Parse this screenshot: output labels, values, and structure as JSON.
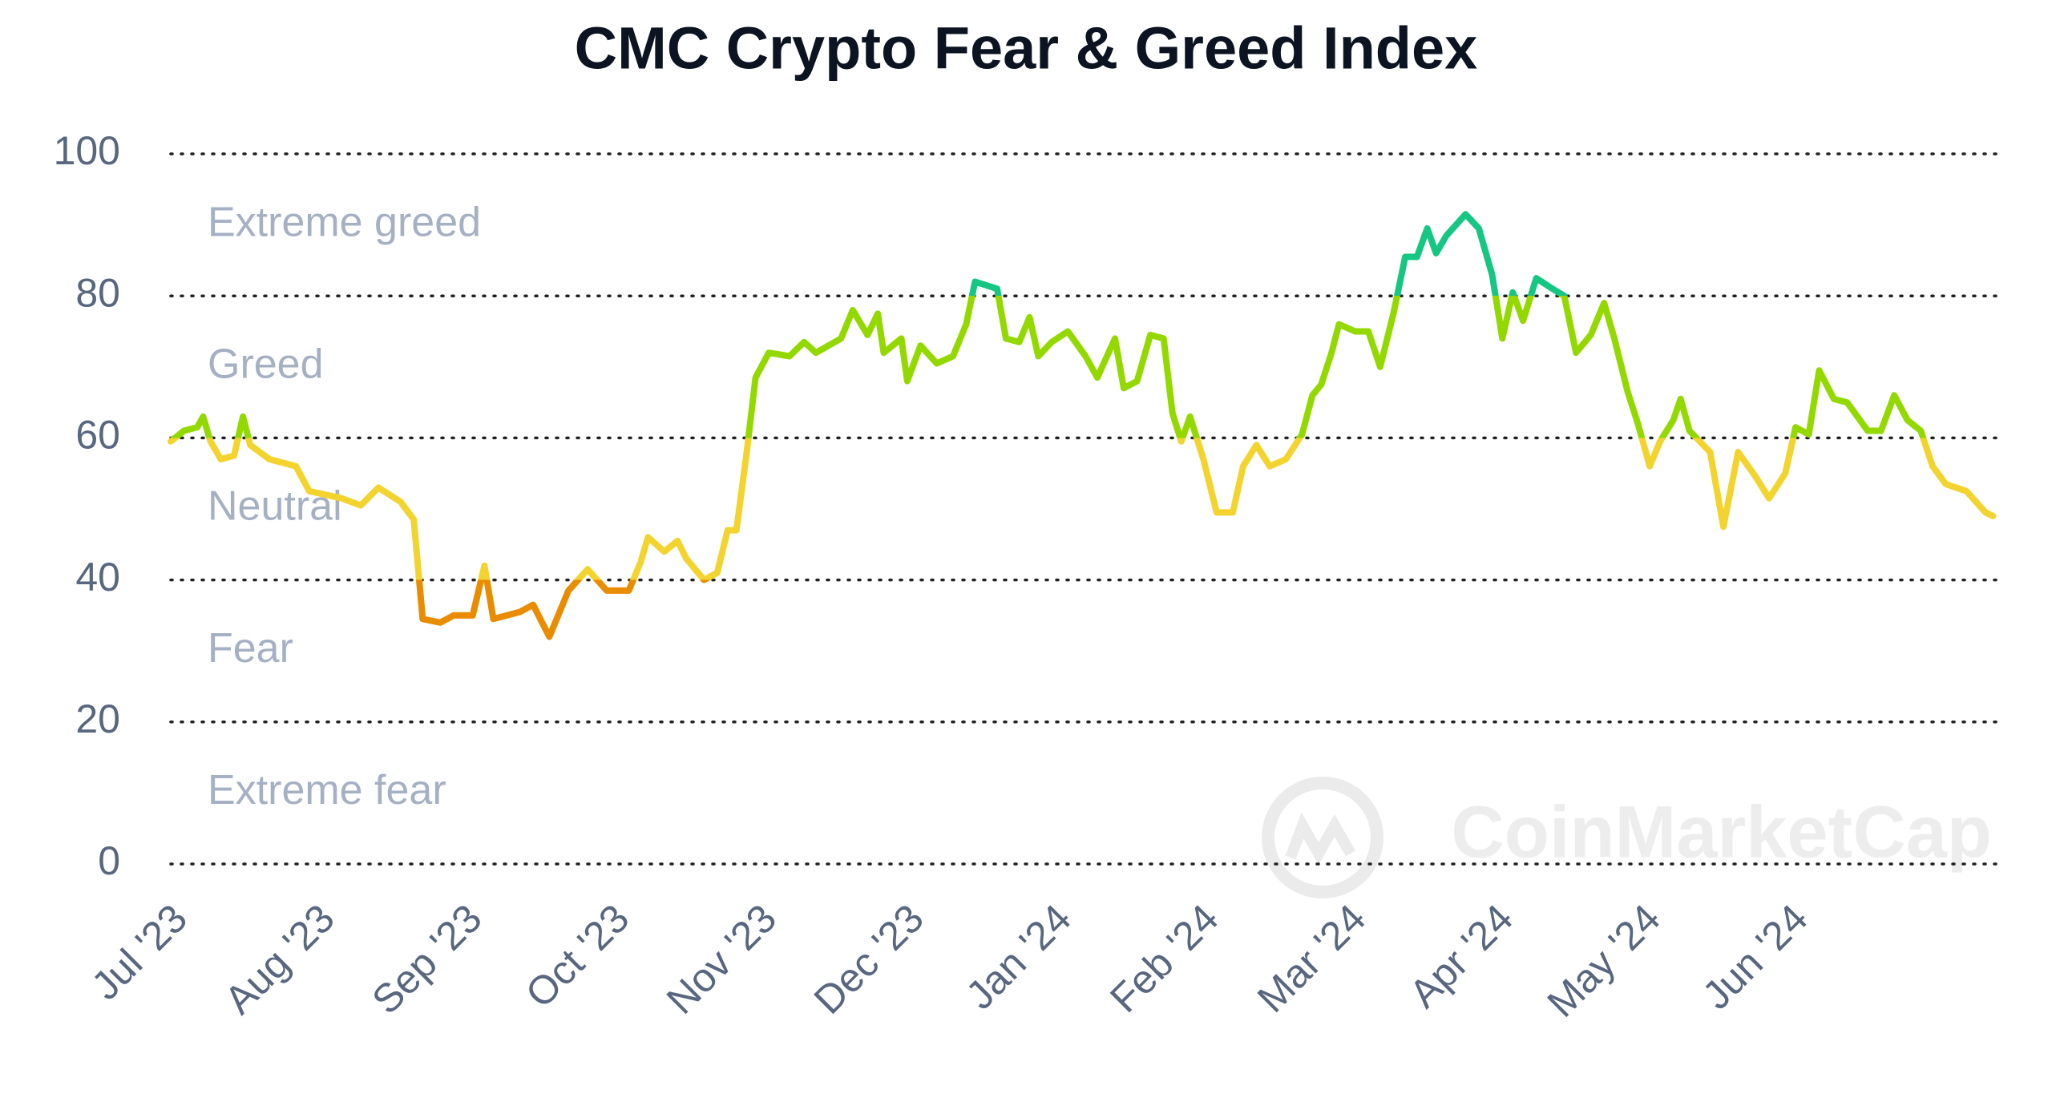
{
  "chart_data": {
    "type": "line",
    "title": "CMC Crypto Fear & Greed Index",
    "x": [
      0,
      0.09,
      0.18,
      0.22,
      0.27,
      0.34,
      0.43,
      0.49,
      0.54,
      0.67,
      0.85,
      0.94,
      1.16,
      1.29,
      1.41,
      1.56,
      1.65,
      1.71,
      1.83,
      1.92,
      2.05,
      2.13,
      2.19,
      2.37,
      2.46,
      2.57,
      2.7,
      2.83,
      2.96,
      3.11,
      3.19,
      3.24,
      3.35,
      3.44,
      3.5,
      3.62,
      3.71,
      3.78,
      3.84,
      3.91,
      3.97,
      4.06,
      4.2,
      4.3,
      4.38,
      4.55,
      4.63,
      4.73,
      4.8,
      4.84,
      4.96,
      5.0,
      5.09,
      5.2,
      5.31,
      5.4,
      5.46,
      5.61,
      5.67,
      5.76,
      5.83,
      5.89,
      5.98,
      6.09,
      6.21,
      6.29,
      6.41,
      6.47,
      6.56,
      6.65,
      6.74,
      6.8,
      6.86,
      6.92,
      7.01,
      7.1,
      7.21,
      7.28,
      7.37,
      7.46,
      7.57,
      7.68,
      7.75,
      7.81,
      7.88,
      7.93,
      8.04,
      8.13,
      8.21,
      8.3,
      8.38,
      8.46,
      8.53,
      8.59,
      8.66,
      8.79,
      8.88,
      8.97,
      9.04,
      9.11,
      9.18,
      9.27,
      9.38,
      9.46,
      9.54,
      9.64,
      9.73,
      9.8,
      9.89,
      9.96,
      10.04,
      10.11,
      10.2,
      10.25,
      10.31,
      10.45,
      10.54,
      10.64,
      10.76,
      10.85,
      10.96,
      11.03,
      11.12,
      11.19,
      11.29,
      11.38,
      11.52,
      11.61,
      11.7,
      11.79,
      11.88,
      11.96,
      12.05,
      12.19,
      12.32,
      12.37
    ],
    "values": [
      59.5,
      61,
      61.5,
      63,
      59.5,
      57,
      57.5,
      63,
      59,
      57,
      56,
      52.5,
      51.5,
      50.5,
      53,
      51,
      48.5,
      34.5,
      34,
      35,
      35,
      42,
      34.5,
      35.5,
      36.5,
      32,
      38.5,
      41.5,
      38.5,
      38.5,
      42.5,
      46,
      44,
      45.5,
      43,
      40,
      41,
      47,
      47,
      58,
      68.5,
      72,
      71.5,
      73.5,
      72,
      74,
      78,
      74.5,
      77.5,
      72,
      74,
      68,
      73,
      70.5,
      71.5,
      76,
      82,
      81,
      74,
      73.5,
      77,
      71.5,
      73.5,
      75,
      71.5,
      68.5,
      74,
      67,
      68,
      74.5,
      74,
      63.5,
      59.5,
      63,
      57,
      49.5,
      49.5,
      56,
      59,
      56,
      57,
      60.5,
      66,
      67.5,
      72,
      76,
      75,
      75,
      70,
      77.5,
      85.5,
      85.5,
      89.5,
      86,
      88.5,
      91.5,
      89.5,
      83,
      74,
      80.5,
      76.5,
      82.5,
      81,
      80,
      72,
      74.5,
      79,
      74,
      66.5,
      62,
      56,
      59.5,
      62.5,
      65.5,
      61,
      58,
      47.5,
      58,
      54.5,
      51.5,
      55,
      61.5,
      60.5,
      69.5,
      65.5,
      65,
      61,
      61,
      66,
      62.5,
      61,
      56,
      53.5,
      52.5,
      49.5,
      49
    ],
    "xlim": [
      0,
      12.39
    ],
    "xticks": [
      {
        "value": 0,
        "label": "Jul '23"
      },
      {
        "value": 1,
        "label": "Aug '23"
      },
      {
        "value": 2,
        "label": "Sep '23"
      },
      {
        "value": 3,
        "label": "Oct '23"
      },
      {
        "value": 4,
        "label": "Nov '23"
      },
      {
        "value": 5,
        "label": "Dec '23"
      },
      {
        "value": 6,
        "label": "Jan '24"
      },
      {
        "value": 7,
        "label": "Feb '24"
      },
      {
        "value": 8,
        "label": "Mar '24"
      },
      {
        "value": 9,
        "label": "Apr '24"
      },
      {
        "value": 10,
        "label": "May '24"
      },
      {
        "value": 11,
        "label": "Jun '24"
      }
    ],
    "ylim": [
      0,
      100
    ],
    "yticks": [
      0,
      20,
      40,
      60,
      80,
      100
    ],
    "grid": true,
    "zones": [
      {
        "name": "Extreme greed",
        "color": "#16c784",
        "range": [
          80,
          100
        ]
      },
      {
        "name": "Greed",
        "color": "#93d900",
        "range": [
          60,
          80
        ]
      },
      {
        "name": "Neutral",
        "color": "#f3d42f",
        "range": [
          40,
          60
        ]
      },
      {
        "name": "Fear",
        "color": "#ea8c00",
        "range": [
          20,
          40
        ]
      },
      {
        "name": "Extreme fear",
        "color": "#ea3943",
        "range": [
          0,
          20
        ]
      }
    ],
    "watermark": "CoinMarketCap"
  }
}
